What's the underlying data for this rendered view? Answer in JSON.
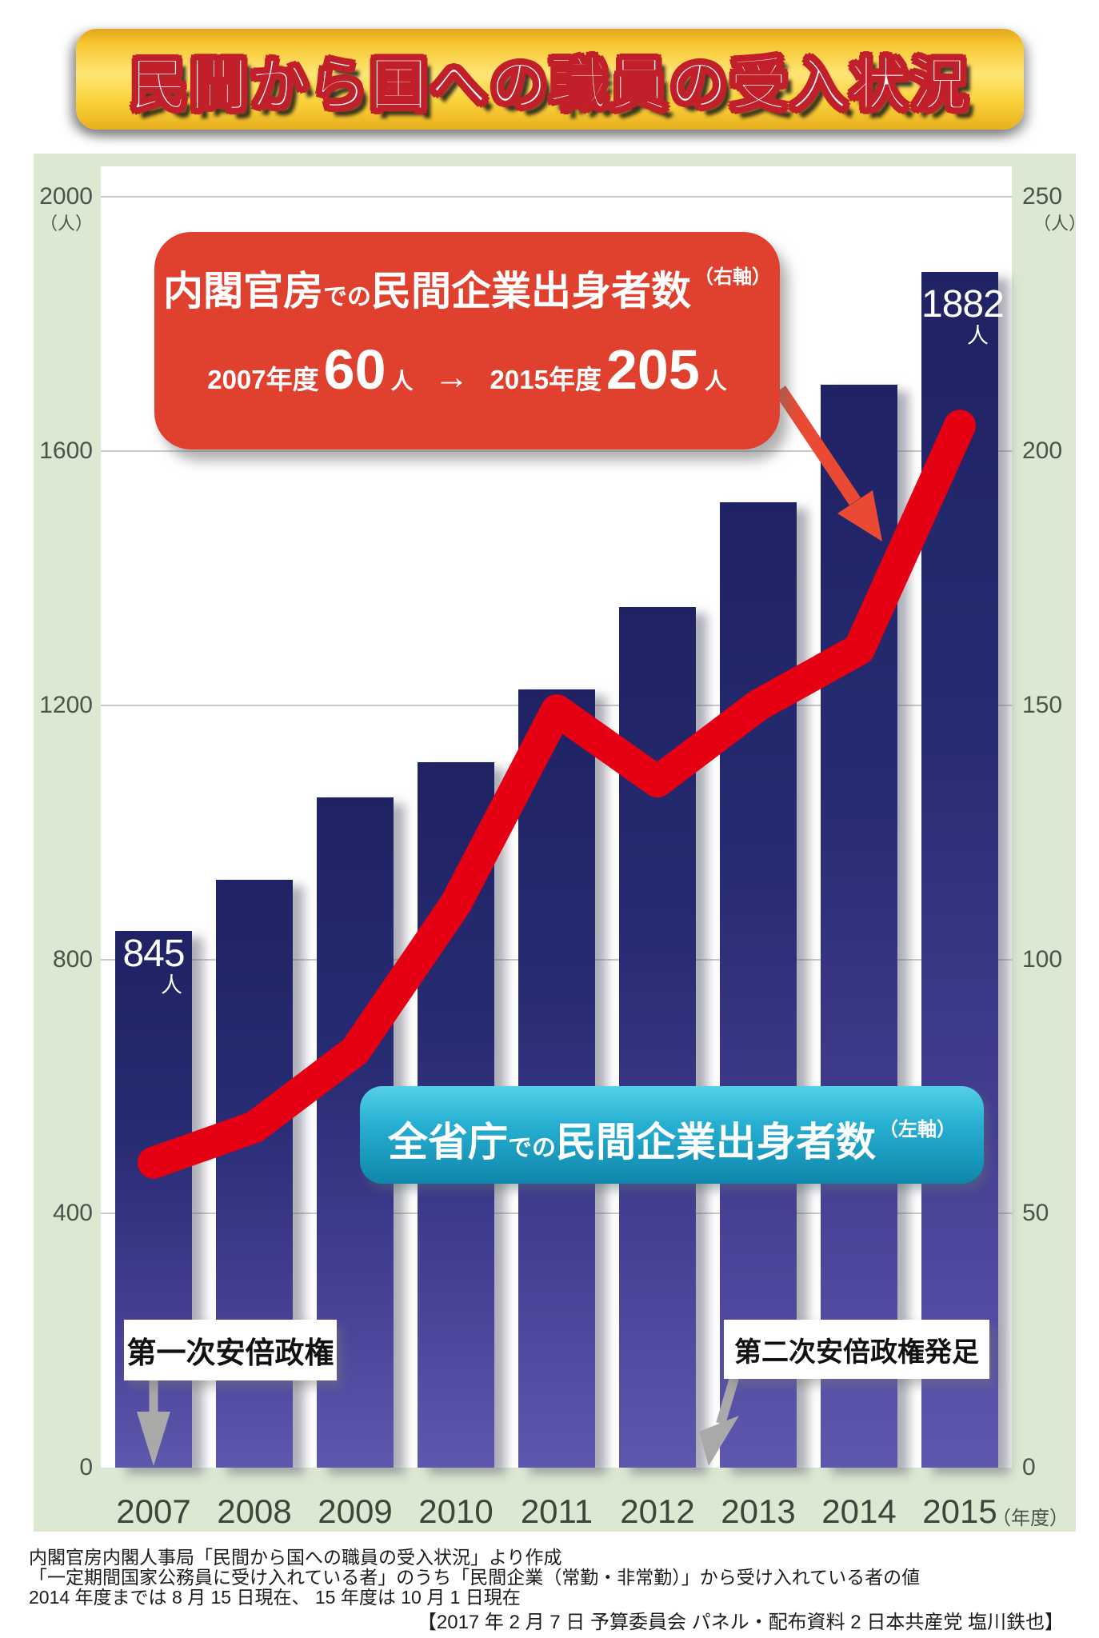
{
  "title": "民間から国への職員の受入状況",
  "chart_data": {
    "type": "combo bar + line",
    "categories": [
      "2007",
      "2008",
      "2009",
      "2010",
      "2011",
      "2012",
      "2013",
      "2014",
      "2015"
    ],
    "x_axis_suffix": "（年度）",
    "series": [
      {
        "name": "全省庁での民間企業出身者数",
        "type": "bar",
        "axis": "left",
        "values": [
          845,
          925,
          1055,
          1110,
          1225,
          1355,
          1520,
          1705,
          1882
        ],
        "labeled_points": {
          "2007": 845,
          "2015": 1882
        }
      },
      {
        "name": "内閣官房での民間企業出身者数",
        "type": "line",
        "axis": "right",
        "values": [
          60,
          67,
          82,
          111,
          149,
          135,
          150,
          161,
          205
        ],
        "labeled_points": {
          "2007": 60,
          "2015": 205
        }
      }
    ],
    "left_axis": {
      "unit": "（人）",
      "ticks": [
        2000,
        1600,
        1200,
        800,
        400,
        0
      ],
      "range": [
        0,
        2000
      ]
    },
    "right_axis": {
      "unit": "（人）",
      "ticks": [
        250,
        200,
        150,
        100,
        50,
        0
      ],
      "range": [
        0,
        250
      ]
    },
    "grid": true,
    "colors": {
      "bar_top": "#1f2363",
      "bar_bottom": "#5d58ae",
      "line": "#e60013",
      "background_panel": "#dce8d2",
      "plot_background": "#ffffff"
    }
  },
  "red_callout": {
    "name_big1": "内閣官房",
    "name_small": "での",
    "name_big2": "民間企業出身者数",
    "axis_note": "（右軸）",
    "from_year": "2007年度",
    "from_value": "60",
    "from_unit": "人",
    "arrow": "→",
    "to_year": "2015年度",
    "to_value": "205",
    "to_unit": "人"
  },
  "teal_callout": {
    "name_big1": "全省庁",
    "name_small": "での",
    "name_big2": "民間企業出身者数",
    "axis_note": "（左軸）"
  },
  "bar_labels": {
    "first_value": "845",
    "first_unit": "人",
    "last_value": "1882",
    "last_unit": "人"
  },
  "annotations": {
    "first_abe": "第一次安倍政権",
    "second_abe": "第二次安倍政権発足"
  },
  "footer": {
    "line1": "内閣官房内閣人事局「民間から国への職員の受入状況」より作成",
    "line2": "「一定期間国家公務員に受け入れている者」のうち「民間企業（常勤・非常勤）」から受け入れている者の値",
    "line3": "2014 年度までは 8 月 15 日現在、 15 年度は 10 月 1 日現在",
    "credit": "【2017 年 2 月 7 日  予算委員会  パネル・配布資料 2  日本共産党  塩川鉄也】"
  }
}
